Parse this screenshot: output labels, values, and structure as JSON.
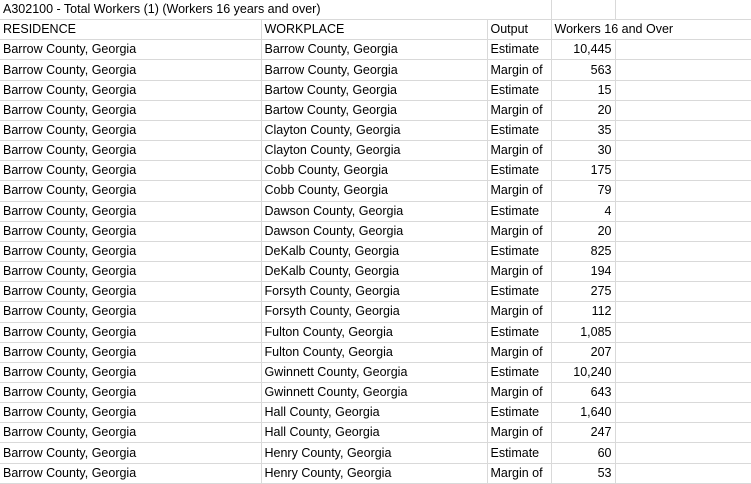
{
  "title": "A302100 - Total Workers (1) (Workers 16 years and over)",
  "headers": {
    "residence": "RESIDENCE",
    "workplace": "WORKPLACE",
    "output": "Output",
    "workers": "Workers 16 and Over"
  },
  "rows": [
    {
      "residence": "Barrow County, Georgia",
      "workplace": "Barrow County, Georgia",
      "output": "Estimate",
      "value": "10,445"
    },
    {
      "residence": "Barrow County, Georgia",
      "workplace": "Barrow County, Georgia",
      "output": "Margin of",
      "value": "563"
    },
    {
      "residence": "Barrow County, Georgia",
      "workplace": "Bartow County, Georgia",
      "output": "Estimate",
      "value": "15"
    },
    {
      "residence": "Barrow County, Georgia",
      "workplace": "Bartow County, Georgia",
      "output": "Margin of",
      "value": "20"
    },
    {
      "residence": "Barrow County, Georgia",
      "workplace": "Clayton County, Georgia",
      "output": "Estimate",
      "value": "35"
    },
    {
      "residence": "Barrow County, Georgia",
      "workplace": "Clayton County, Georgia",
      "output": "Margin of",
      "value": "30"
    },
    {
      "residence": "Barrow County, Georgia",
      "workplace": "Cobb County, Georgia",
      "output": "Estimate",
      "value": "175"
    },
    {
      "residence": "Barrow County, Georgia",
      "workplace": "Cobb County, Georgia",
      "output": "Margin of",
      "value": "79"
    },
    {
      "residence": "Barrow County, Georgia",
      "workplace": "Dawson County, Georgia",
      "output": "Estimate",
      "value": "4"
    },
    {
      "residence": "Barrow County, Georgia",
      "workplace": "Dawson County, Georgia",
      "output": "Margin of",
      "value": "20"
    },
    {
      "residence": "Barrow County, Georgia",
      "workplace": "DeKalb County, Georgia",
      "output": "Estimate",
      "value": "825"
    },
    {
      "residence": "Barrow County, Georgia",
      "workplace": "DeKalb County, Georgia",
      "output": "Margin of",
      "value": "194"
    },
    {
      "residence": "Barrow County, Georgia",
      "workplace": "Forsyth County, Georgia",
      "output": "Estimate",
      "value": "275"
    },
    {
      "residence": "Barrow County, Georgia",
      "workplace": "Forsyth County, Georgia",
      "output": "Margin of",
      "value": "112"
    },
    {
      "residence": "Barrow County, Georgia",
      "workplace": "Fulton County, Georgia",
      "output": "Estimate",
      "value": "1,085"
    },
    {
      "residence": "Barrow County, Georgia",
      "workplace": "Fulton County, Georgia",
      "output": "Margin of",
      "value": "207"
    },
    {
      "residence": "Barrow County, Georgia",
      "workplace": "Gwinnett County, Georgia",
      "output": "Estimate",
      "value": "10,240"
    },
    {
      "residence": "Barrow County, Georgia",
      "workplace": "Gwinnett County, Georgia",
      "output": "Margin of",
      "value": "643"
    },
    {
      "residence": "Barrow County, Georgia",
      "workplace": "Hall County, Georgia",
      "output": "Estimate",
      "value": "1,640"
    },
    {
      "residence": "Barrow County, Georgia",
      "workplace": "Hall County, Georgia",
      "output": "Margin of",
      "value": "247"
    },
    {
      "residence": "Barrow County, Georgia",
      "workplace": "Henry County, Georgia",
      "output": "Estimate",
      "value": "60"
    },
    {
      "residence": "Barrow County, Georgia",
      "workplace": "Henry County, Georgia",
      "output": "Margin of",
      "value": "53"
    }
  ]
}
